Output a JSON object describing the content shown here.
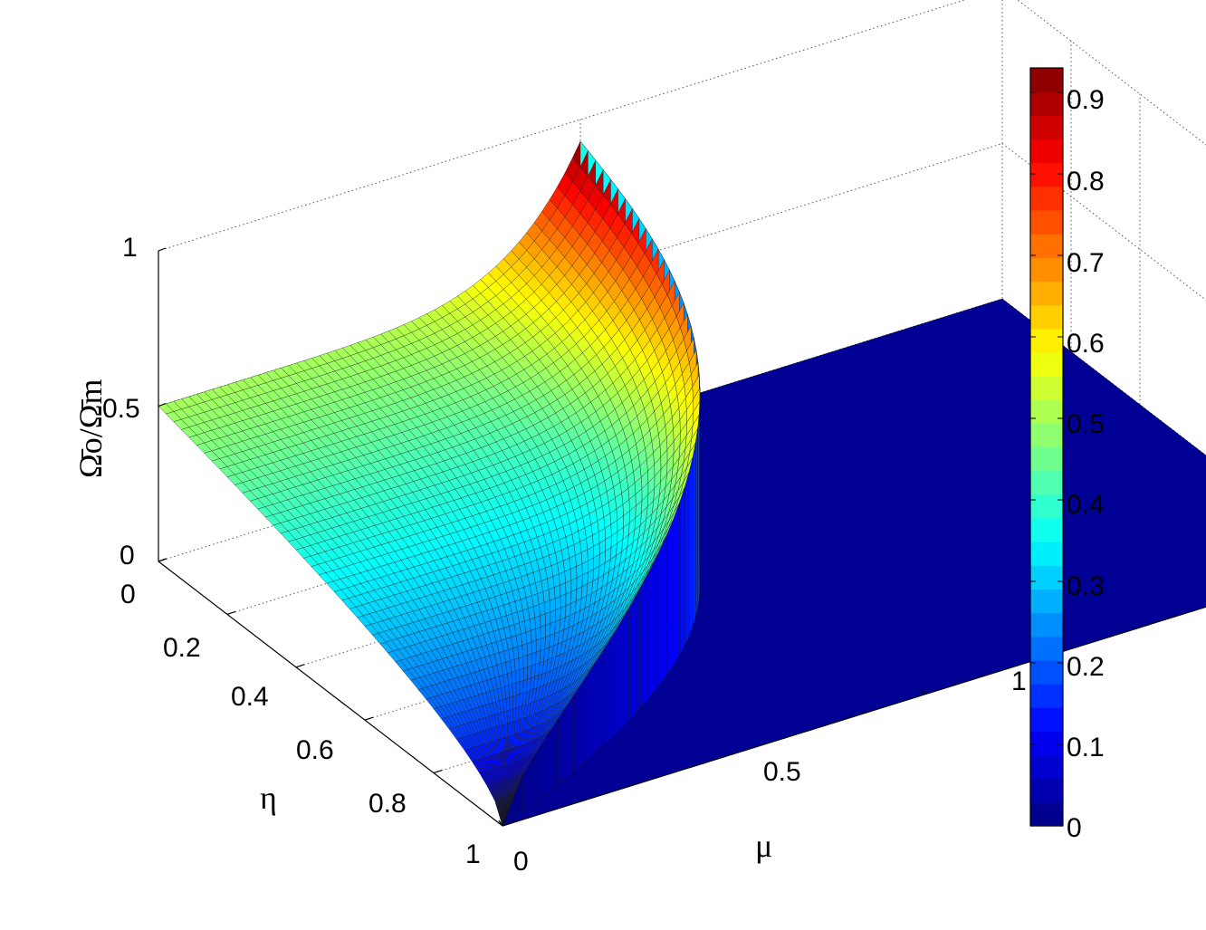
{
  "chart_data": {
    "type": "surface",
    "xlabel": "μ",
    "ylabel": "η",
    "zlabel": "Ω̄o/Ω̄m",
    "xlim": [
      0,
      1
    ],
    "ylim": [
      0,
      1
    ],
    "zlim": [
      0,
      1
    ],
    "x_ticks": [
      "0",
      "0.5",
      "1"
    ],
    "y_ticks": [
      "0",
      "0.2",
      "0.4",
      "0.6",
      "0.8",
      "1"
    ],
    "z_ticks": [
      "0",
      "0.5",
      "1"
    ],
    "grid": true,
    "colormap": "jet",
    "colorbar": {
      "ticks": [
        "0",
        "0.1",
        "0.2",
        "0.3",
        "0.4",
        "0.5",
        "0.6",
        "0.7",
        "0.8",
        "0.9"
      ],
      "range": [
        0,
        0.93
      ],
      "levels": 32
    },
    "surface_points": [
      {
        "mu": 0,
        "eta": 0,
        "value": 0.5
      },
      {
        "mu": 0.5,
        "eta": 0,
        "value": 0.93
      },
      {
        "mu": 0,
        "eta": 1,
        "value": 0.0
      },
      {
        "mu": 0.5,
        "eta": 0.5,
        "value": 0.35
      },
      {
        "mu": 1,
        "eta": 0,
        "value": 0.0
      },
      {
        "mu": 1,
        "eta": 1,
        "value": 0.0
      }
    ]
  }
}
